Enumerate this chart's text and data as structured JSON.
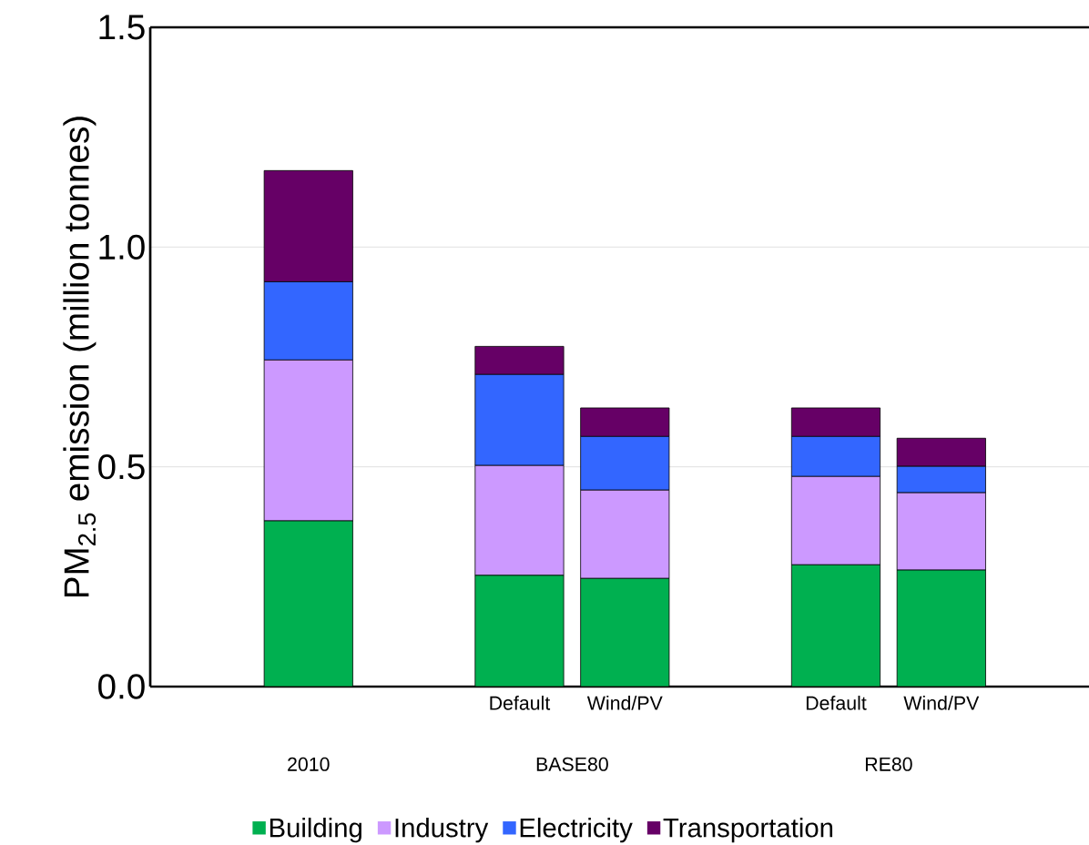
{
  "chart_data": {
    "type": "bar",
    "stacked": true,
    "ylabel": "PM$_{2.5}$ emission (million tonnes)",
    "categories": [
      null,
      null,
      "Default",
      "Wind/PV",
      null,
      "Default",
      "Wind/PV"
    ],
    "series": [
      {
        "name": "Building",
        "color": "#00b050",
        "values": [
          0.377,
          null,
          0.253,
          0.246,
          null,
          0.277,
          0.265
        ]
      },
      {
        "name": "Industry",
        "color": "#cc99ff",
        "values": [
          0.366,
          null,
          0.25,
          0.201,
          null,
          0.201,
          0.176
        ]
      },
      {
        "name": "Electricity",
        "color": "#3366ff",
        "values": [
          0.178,
          null,
          0.207,
          0.122,
          null,
          0.091,
          0.06
        ]
      },
      {
        "name": "Transportation",
        "color": "#660066",
        "values": [
          0.253,
          null,
          0.064,
          0.065,
          null,
          0.065,
          0.064
        ]
      }
    ],
    "annotations": [
      "2010",
      "BASE80",
      "RE80"
    ],
    "ylim": [
      0,
      1.5
    ],
    "yticks": [
      {
        "value": 0,
        "label": "0.0"
      },
      {
        "value": 0.5,
        "label": "0.5"
      },
      {
        "value": 1.0,
        "label": "1.0"
      },
      {
        "value": 1.5,
        "label": "1.5"
      }
    ],
    "grid": "y",
    "legend": "bottom"
  }
}
